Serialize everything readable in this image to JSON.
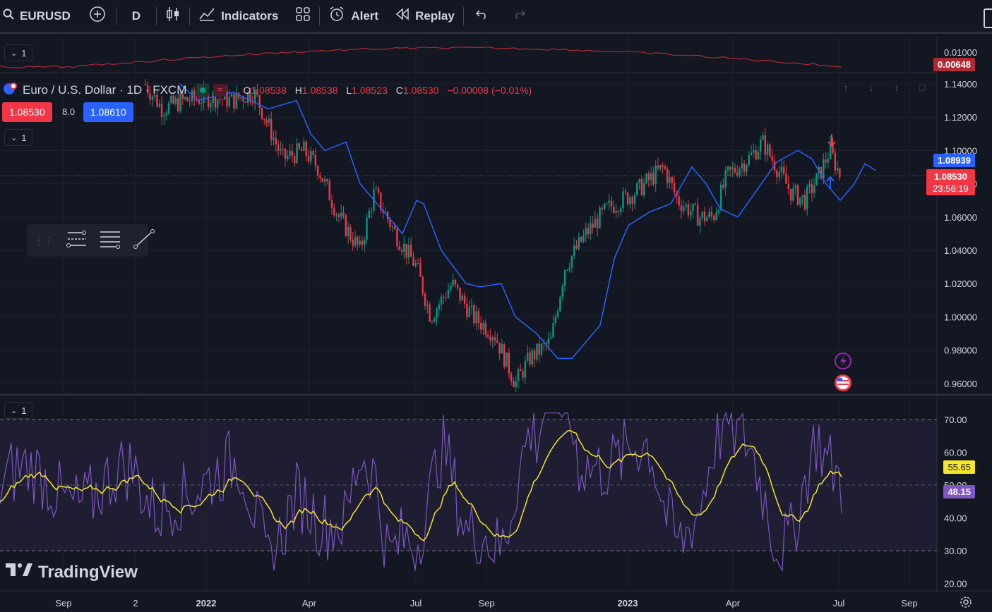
{
  "toolbar": {
    "symbol": "EURUSD",
    "interval": "D",
    "indicators_label": "Indicators",
    "alert_label": "Alert",
    "replay_label": "Replay"
  },
  "pane_tags": {
    "top": "1",
    "main": "1",
    "rsi": "1"
  },
  "legend": {
    "title": "Euro / U.S. Dollar · 1D · FXCM",
    "ohlc": {
      "o_label": "O",
      "o": "1.08538",
      "h_label": "H",
      "h": "1.08538",
      "l_label": "L",
      "l": "1.08523",
      "c_label": "C",
      "c": "1.08530",
      "change": "−0.00008 (−0.01%)"
    }
  },
  "trade": {
    "sell": "1.08530",
    "spread": "8.0",
    "buy": "1.08610"
  },
  "axis": {
    "top_ticks": [
      "0.01000"
    ],
    "top_badge": "0.00648",
    "price_ticks": [
      "1.14000",
      "1.12000",
      "1.10000",
      "1.08000",
      "1.06000",
      "1.04000",
      "1.02000",
      "1.00000",
      "0.98000",
      "0.96000"
    ],
    "ma_badge": "1.08939",
    "price_badge": "1.08530",
    "countdown": "23:56:19",
    "rsi_ticks": [
      "70.00",
      "60.00",
      "50.00",
      "40.00",
      "30.00",
      "20.00"
    ],
    "rsi_ma_badge": "55.65",
    "rsi_badge": "48.15",
    "time_ticks": [
      "Sep",
      "2",
      "2022",
      "Apr",
      "Jul",
      "Sep",
      "2023",
      "Apr",
      "Jul",
      "Sep"
    ]
  },
  "watermark": "TradingView",
  "colors": {
    "bg": "#131722",
    "up": "#089981",
    "down": "#f23645",
    "ma": "#2962ff",
    "rsi": "#7e57c2",
    "rsi_ma": "#f7e627",
    "atr": "#b22833"
  },
  "icons": [
    "search-icon",
    "plus-circle-icon",
    "candles-icon",
    "indicators-icon",
    "layout-icon",
    "alarm-icon",
    "replay-icon",
    "undo-icon",
    "redo-icon",
    "settings-icon"
  ]
}
